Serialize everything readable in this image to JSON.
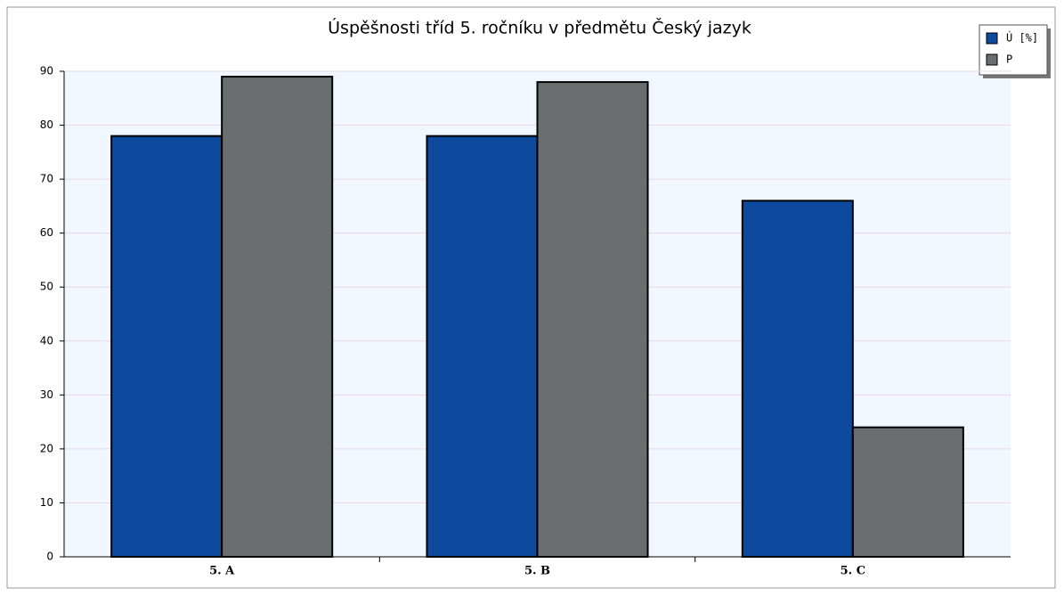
{
  "chart_data": {
    "type": "bar",
    "title": "Úspěšnosti tříd 5. ročníku v předmětu Český jazyk",
    "categories": [
      "5. A",
      "5. B",
      "5. C"
    ],
    "series": [
      {
        "name": "Ú [%]",
        "color": "#0d4a9e",
        "values": [
          78,
          78,
          66
        ]
      },
      {
        "name": "P",
        "color": "#6b6e70",
        "values": [
          89,
          88,
          24
        ]
      }
    ],
    "ylim": [
      0,
      90
    ],
    "yticks": [
      0,
      10,
      20,
      30,
      40,
      50,
      60,
      70,
      80,
      90
    ],
    "grid": true,
    "legend": "top-right"
  }
}
